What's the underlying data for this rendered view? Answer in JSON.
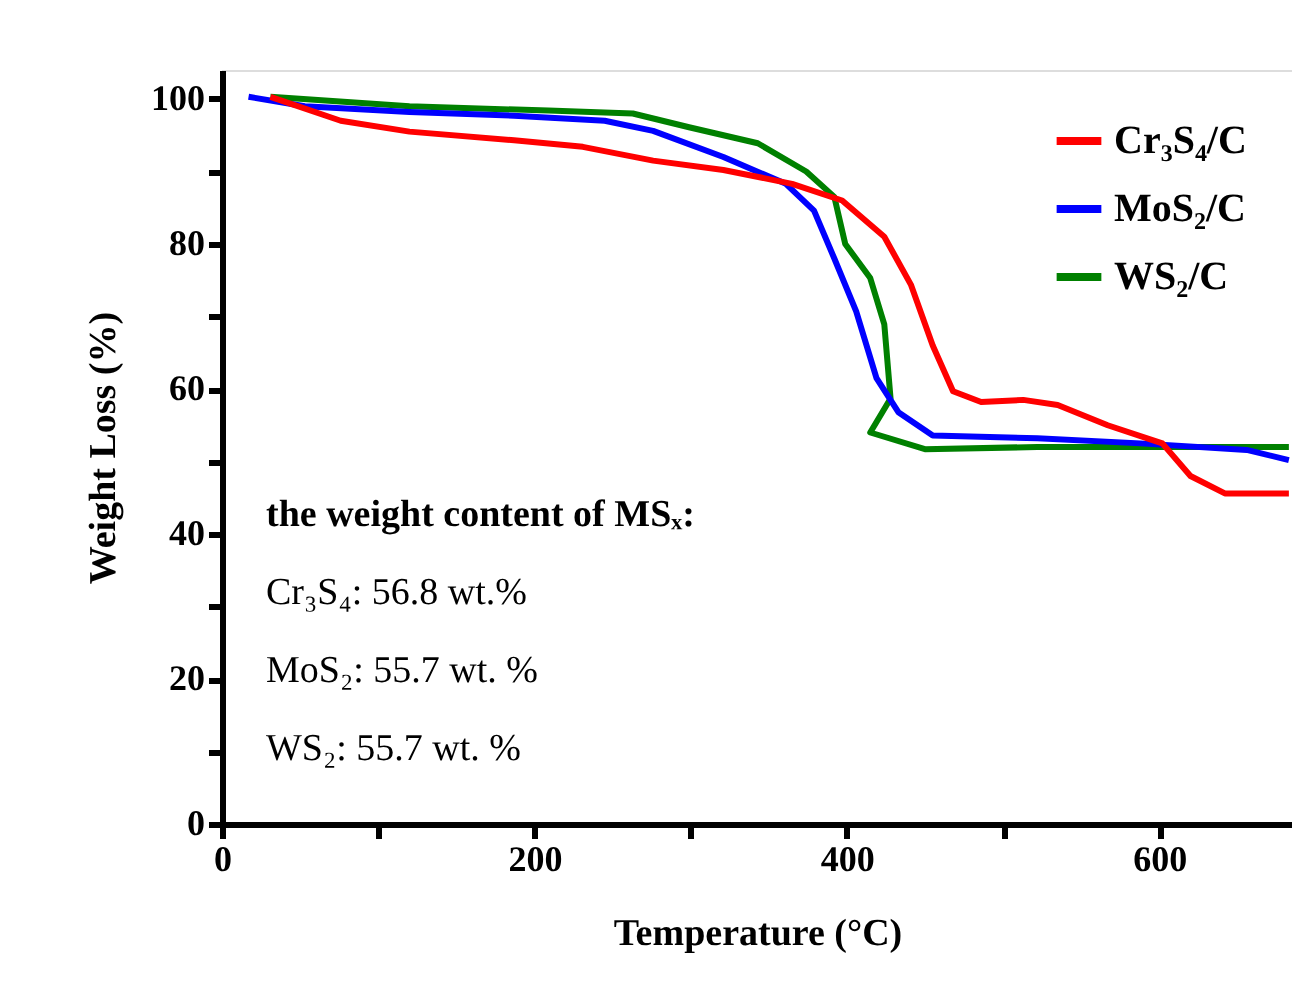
{
  "chart_data": {
    "type": "line",
    "xlabel": "Temperature (°C)",
    "ylabel": "Weight Loss (%)",
    "xlim": [
      0,
      685
    ],
    "ylim": [
      0,
      104
    ],
    "xticks": [
      0,
      {
        "value": 100,
        "label": null
      },
      200,
      {
        "value": 300,
        "label": null
      },
      400,
      {
        "value": 500,
        "label": null
      },
      600
    ],
    "yticks": [
      0,
      {
        "value": 10,
        "label": null
      },
      20,
      {
        "value": 30,
        "label": null
      },
      40,
      {
        "value": 50,
        "label": null
      },
      60,
      {
        "value": 70,
        "label": null
      },
      80,
      {
        "value": 90,
        "label": null
      },
      100
    ],
    "grid": false,
    "legend": "top right",
    "line_style": "solid",
    "marker": "none",
    "series": [
      {
        "name": "Cr₃S₄/C",
        "color": "#ff0000",
        "x": [
          31,
          76,
          120,
          187,
          231,
          276,
          321,
          365,
          397,
          424,
          441,
          455,
          468,
          486,
          513,
          535,
          567,
          602,
          620,
          642,
          683
        ],
        "values": [
          100.3,
          97,
          95.5,
          94.3,
          93.4,
          91.5,
          90.2,
          88.3,
          86,
          81,
          74.4,
          66,
          59.7,
          58.2,
          58.5,
          57.8,
          55,
          52.5,
          48,
          45.6,
          45.6
        ]
      },
      {
        "name": "MoS₂/C",
        "color": "#0000ff",
        "x": [
          17,
          53,
          120,
          187,
          245,
          276,
          321,
          361,
          379,
          392,
          406,
          419,
          433,
          455,
          522,
          588,
          656,
          683
        ],
        "values": [
          100.3,
          99,
          98.2,
          97.7,
          97,
          95.6,
          92,
          88.3,
          84.6,
          78,
          70.7,
          61.5,
          56.8,
          53.6,
          53.2,
          52.5,
          51.6,
          50.2
        ]
      },
      {
        "name": "WS₂/C",
        "color": "#008000",
        "x": [
          31,
          120,
          209,
          263,
          299,
          343,
          374,
          392,
          399,
          415,
          424,
          428,
          415,
          450,
          522,
          600,
          683
        ],
        "values": [
          100.3,
          99,
          98.4,
          98,
          96.1,
          93.9,
          90,
          86.5,
          80,
          75.3,
          68.9,
          58.7,
          54,
          51.7,
          52,
          52,
          52
        ]
      }
    ],
    "annotations": [
      "the weight content of MSₓ:",
      "Cr₃S₄: 56.8 wt.%",
      "MoS₂: 55.7 wt. %",
      "WS₂:   55.7 wt. %"
    ]
  }
}
